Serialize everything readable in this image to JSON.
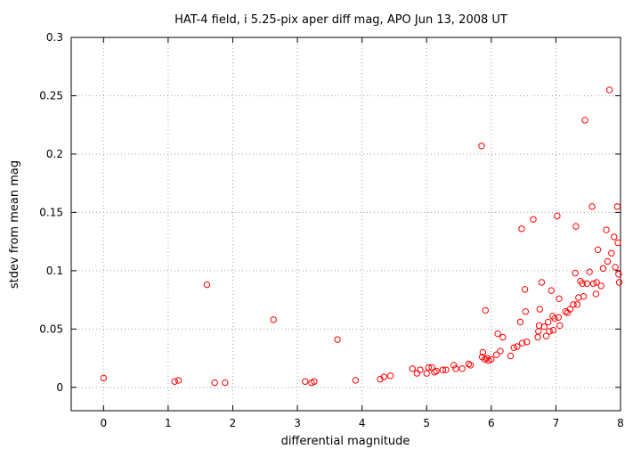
{
  "chart_data": {
    "type": "scatter",
    "title": "HAT-4 field, i 5.25-pix aper diff mag, APO Jun 13, 2008 UT",
    "xlabel": "differential magnitude",
    "ylabel": "stdev from mean mag",
    "xlim": [
      -0.5,
      8
    ],
    "ylim": [
      -0.02,
      0.3
    ],
    "x_ticks": [
      "0",
      "1",
      "2",
      "3",
      "4",
      "5",
      "6",
      "7",
      "8"
    ],
    "y_ticks": [
      "0",
      "0.05",
      "0.1",
      "0.15",
      "0.2",
      "0.25",
      "0.3"
    ],
    "grid": true,
    "marker": "open-circle",
    "color": "#ff0000",
    "points": [
      [
        0.0,
        0.008
      ],
      [
        1.1,
        0.005
      ],
      [
        1.16,
        0.006
      ],
      [
        1.6,
        0.088
      ],
      [
        1.72,
        0.004
      ],
      [
        1.88,
        0.004
      ],
      [
        2.63,
        0.058
      ],
      [
        3.12,
        0.005
      ],
      [
        3.22,
        0.004
      ],
      [
        3.26,
        0.005
      ],
      [
        3.62,
        0.041
      ],
      [
        3.9,
        0.006
      ],
      [
        4.28,
        0.007
      ],
      [
        4.34,
        0.009
      ],
      [
        4.44,
        0.01
      ],
      [
        4.78,
        0.016
      ],
      [
        4.85,
        0.012
      ],
      [
        4.9,
        0.015
      ],
      [
        5.0,
        0.012
      ],
      [
        5.03,
        0.017
      ],
      [
        5.08,
        0.017
      ],
      [
        5.12,
        0.013
      ],
      [
        5.15,
        0.014
      ],
      [
        5.25,
        0.015
      ],
      [
        5.3,
        0.015
      ],
      [
        5.42,
        0.019
      ],
      [
        5.45,
        0.016
      ],
      [
        5.55,
        0.016
      ],
      [
        5.65,
        0.02
      ],
      [
        5.68,
        0.019
      ],
      [
        5.85,
        0.207
      ],
      [
        5.87,
        0.03
      ],
      [
        5.86,
        0.026
      ],
      [
        5.9,
        0.024
      ],
      [
        5.91,
        0.066
      ],
      [
        5.93,
        0.025
      ],
      [
        5.96,
        0.023
      ],
      [
        6.0,
        0.024
      ],
      [
        6.08,
        0.028
      ],
      [
        6.1,
        0.046
      ],
      [
        6.14,
        0.031
      ],
      [
        6.18,
        0.043
      ],
      [
        6.3,
        0.027
      ],
      [
        6.35,
        0.034
      ],
      [
        6.4,
        0.035
      ],
      [
        6.45,
        0.056
      ],
      [
        6.47,
        0.136
      ],
      [
        6.48,
        0.038
      ],
      [
        6.52,
        0.084
      ],
      [
        6.55,
        0.039
      ],
      [
        6.53,
        0.065
      ],
      [
        6.65,
        0.144
      ],
      [
        6.72,
        0.043
      ],
      [
        6.73,
        0.048
      ],
      [
        6.74,
        0.053
      ],
      [
        6.75,
        0.067
      ],
      [
        6.78,
        0.09
      ],
      [
        6.82,
        0.052
      ],
      [
        6.85,
        0.044
      ],
      [
        6.88,
        0.056
      ],
      [
        6.9,
        0.048
      ],
      [
        6.93,
        0.083
      ],
      [
        6.95,
        0.061
      ],
      [
        6.96,
        0.049
      ],
      [
        6.98,
        0.059
      ],
      [
        7.02,
        0.147
      ],
      [
        7.04,
        0.06
      ],
      [
        7.05,
        0.076
      ],
      [
        7.06,
        0.053
      ],
      [
        7.15,
        0.065
      ],
      [
        7.18,
        0.064
      ],
      [
        7.22,
        0.067
      ],
      [
        7.27,
        0.071
      ],
      [
        7.3,
        0.098
      ],
      [
        7.31,
        0.138
      ],
      [
        7.33,
        0.071
      ],
      [
        7.35,
        0.077
      ],
      [
        7.38,
        0.091
      ],
      [
        7.41,
        0.089
      ],
      [
        7.43,
        0.078
      ],
      [
        7.45,
        0.229
      ],
      [
        7.48,
        0.089
      ],
      [
        7.52,
        0.099
      ],
      [
        7.56,
        0.155
      ],
      [
        7.58,
        0.089
      ],
      [
        7.62,
        0.08
      ],
      [
        7.63,
        0.09
      ],
      [
        7.65,
        0.118
      ],
      [
        7.7,
        0.087
      ],
      [
        7.73,
        0.102
      ],
      [
        7.78,
        0.135
      ],
      [
        7.8,
        0.108
      ],
      [
        7.83,
        0.255
      ],
      [
        7.86,
        0.115
      ],
      [
        7.9,
        0.129
      ],
      [
        7.92,
        0.103
      ],
      [
        7.95,
        0.155
      ],
      [
        7.96,
        0.124
      ],
      [
        7.97,
        0.097
      ],
      [
        7.98,
        0.09
      ]
    ]
  }
}
